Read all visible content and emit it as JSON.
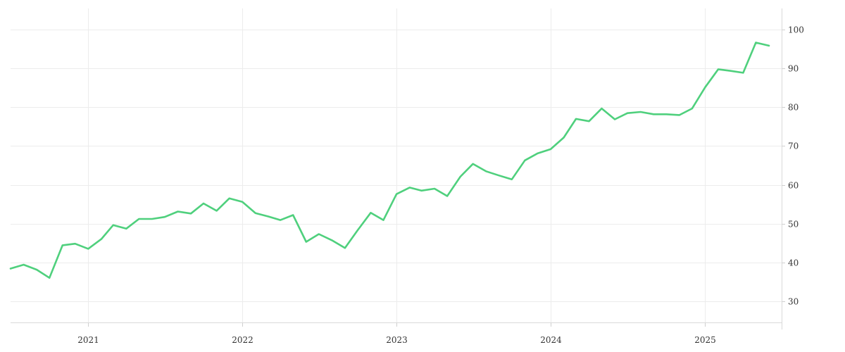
{
  "chart_data": {
    "type": "line",
    "title": "",
    "xlabel": "",
    "ylabel": "",
    "x_range": [
      "2020-07-01",
      "2025-07-01"
    ],
    "ylim": [
      24.5,
      105.5
    ],
    "y_axis_position": "right",
    "grid": true,
    "legend": "none",
    "x_ticks": [
      {
        "date": "2021-01-01",
        "label": "2021"
      },
      {
        "date": "2022-01-01",
        "label": "2022"
      },
      {
        "date": "2023-01-01",
        "label": "2023"
      },
      {
        "date": "2024-01-01",
        "label": "2024"
      },
      {
        "date": "2025-01-01",
        "label": "2025"
      }
    ],
    "y_ticks": [
      30,
      40,
      50,
      60,
      70,
      80,
      90,
      100
    ],
    "series": [
      {
        "color": "#4fd07d",
        "x": [
          "2020-07-01",
          "2020-08-01",
          "2020-09-01",
          "2020-10-01",
          "2020-11-01",
          "2020-12-01",
          "2021-01-01",
          "2021-02-01",
          "2021-03-01",
          "2021-04-01",
          "2021-05-01",
          "2021-06-01",
          "2021-07-01",
          "2021-08-01",
          "2021-09-01",
          "2021-10-01",
          "2021-11-01",
          "2021-12-01",
          "2022-01-01",
          "2022-02-01",
          "2022-03-01",
          "2022-04-01",
          "2022-05-01",
          "2022-06-01",
          "2022-07-01",
          "2022-08-01",
          "2022-09-01",
          "2022-10-01",
          "2022-11-01",
          "2022-12-01",
          "2023-01-01",
          "2023-02-01",
          "2023-03-01",
          "2023-04-01",
          "2023-05-01",
          "2023-06-01",
          "2023-07-01",
          "2023-08-01",
          "2023-09-01",
          "2023-10-01",
          "2023-11-01",
          "2023-12-01",
          "2024-01-01",
          "2024-02-01",
          "2024-03-01",
          "2024-04-01",
          "2024-05-01",
          "2024-06-01",
          "2024-07-01",
          "2024-08-01",
          "2024-09-01",
          "2024-10-01",
          "2024-11-01",
          "2024-12-01",
          "2025-01-01",
          "2025-02-01",
          "2025-03-01",
          "2025-04-01",
          "2025-05-01",
          "2025-06-01"
        ],
        "values": [
          38.4,
          39.4,
          38.1,
          36.0,
          44.4,
          44.8,
          43.5,
          46.0,
          49.6,
          48.7,
          51.2,
          51.2,
          51.7,
          53.1,
          52.6,
          55.2,
          53.3,
          56.5,
          55.6,
          52.7,
          51.9,
          50.9,
          52.2,
          45.3,
          47.3,
          45.7,
          43.7,
          48.3,
          52.8,
          50.9,
          57.6,
          59.3,
          58.5,
          59.0,
          57.1,
          62.1,
          65.4,
          63.5,
          62.4,
          61.4,
          66.3,
          68.1,
          69.2,
          72.2,
          77.0,
          76.4,
          79.7,
          76.9,
          78.5,
          78.8,
          78.2,
          78.2,
          78.0,
          79.7,
          85.2,
          89.8,
          89.4,
          88.9,
          96.7,
          95.9
        ]
      }
    ]
  }
}
